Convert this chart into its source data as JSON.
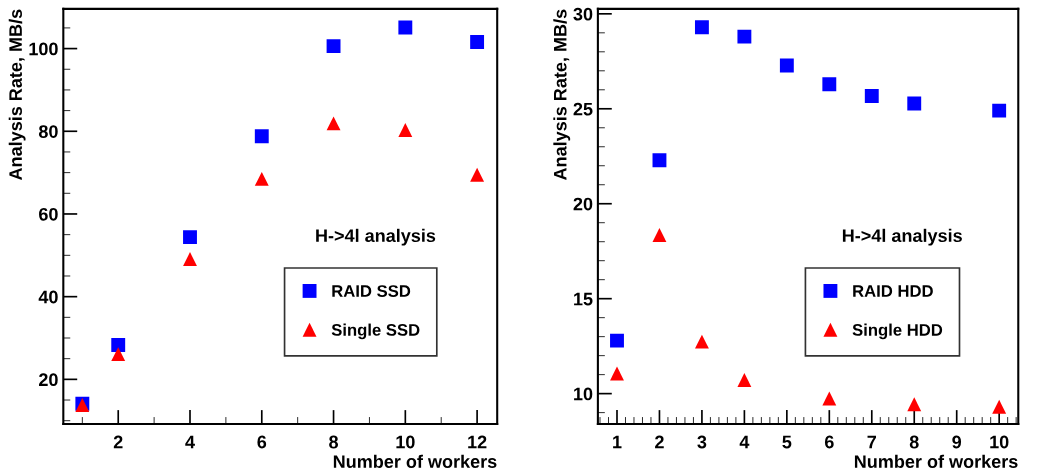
{
  "chart_data": [
    {
      "type": "scatter",
      "xlabel": "Number of workers",
      "ylabel": "Analysis Rate, MB/s",
      "annotations": [
        "H->4l analysis"
      ],
      "x": [
        1,
        2,
        4,
        6,
        8,
        10,
        12
      ],
      "xlim": [
        0.47,
        12.56
      ],
      "xticks": [
        2,
        4,
        6,
        8,
        10,
        12
      ],
      "ylim": [
        9.2,
        109.6
      ],
      "yticks": [
        20,
        40,
        60,
        80,
        100
      ],
      "legend": "right",
      "grid": false,
      "series": [
        {
          "name": "RAID SSD",
          "color": "#0000ff",
          "marker": "square",
          "values": [
            14.1,
            28.3,
            54.4,
            78.8,
            100.6,
            105.1,
            101.6
          ]
        },
        {
          "name": "Single SSD",
          "color": "#ff0000",
          "marker": "triangle",
          "values": [
            13.8,
            26.1,
            49.1,
            68.5,
            81.9,
            80.3,
            69.5
          ]
        }
      ]
    },
    {
      "type": "scatter",
      "xlabel": "Number of workers",
      "ylabel": "Analysis Rate, MB/s",
      "annotations": [
        "H->4l analysis"
      ],
      "xlim": [
        0.55,
        10.45
      ],
      "xticks": [
        1,
        2,
        3,
        4,
        5,
        6,
        7,
        8,
        9,
        10
      ],
      "ylim": [
        8.4,
        30.26
      ],
      "yticks": [
        10,
        15,
        20,
        25,
        30
      ],
      "legend": "right",
      "grid": false,
      "series": [
        {
          "name": "RAID HDD",
          "color": "#0000ff",
          "marker": "square",
          "x": [
            1,
            2,
            3,
            4,
            5,
            6,
            7,
            8,
            10
          ],
          "values": [
            12.79,
            22.29,
            29.29,
            28.8,
            27.28,
            26.29,
            25.67,
            25.28,
            24.9
          ]
        },
        {
          "name": "Single HDD",
          "color": "#ff0000",
          "marker": "triangle",
          "x": [
            1,
            2,
            3,
            4,
            6,
            8,
            10
          ],
          "values": [
            11.06,
            18.35,
            12.74,
            10.72,
            9.74,
            9.44,
            9.31
          ]
        }
      ]
    }
  ]
}
